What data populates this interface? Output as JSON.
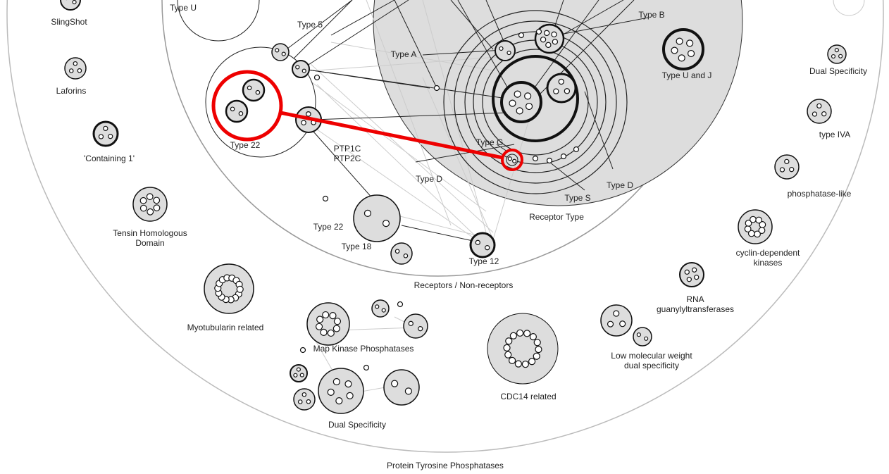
{
  "labels": [
    [
      "Type U"
    ],
    [
      "SlingShot"
    ],
    [
      "Laforins"
    ],
    [
      "'Containing 1'"
    ],
    [
      "Tensin Homologous",
      "Domain"
    ],
    [
      "Myotubularin related"
    ],
    [
      "Type 5"
    ],
    [
      "Type A"
    ],
    [
      "Type B"
    ],
    [
      "Type U and J"
    ],
    [
      "Dual Specificity"
    ],
    [
      "type IVA"
    ],
    [
      "phosphatase-like"
    ],
    [
      "cyclin-dependent",
      "kinases"
    ],
    [
      "RNA",
      "guanylyltransferases"
    ],
    [
      "Low molecular weight",
      "dual specificity"
    ],
    [
      "CDC14 related"
    ],
    [
      "Dual Specificity"
    ],
    [
      "Map Kinase Phosphatases"
    ],
    [
      "Type 22"
    ],
    [
      "PTP1C",
      "PTP2C"
    ],
    [
      "Type G"
    ],
    [
      "Type D"
    ],
    [
      "Type S"
    ],
    [
      "Type D"
    ],
    [
      "Receptor Type"
    ],
    [
      "Type 22"
    ],
    [
      "Type 18"
    ],
    [
      "Type 12"
    ],
    [
      "Receptors / Non-receptors"
    ],
    [
      "Protein Tyrosine Phosphatases"
    ]
  ]
}
